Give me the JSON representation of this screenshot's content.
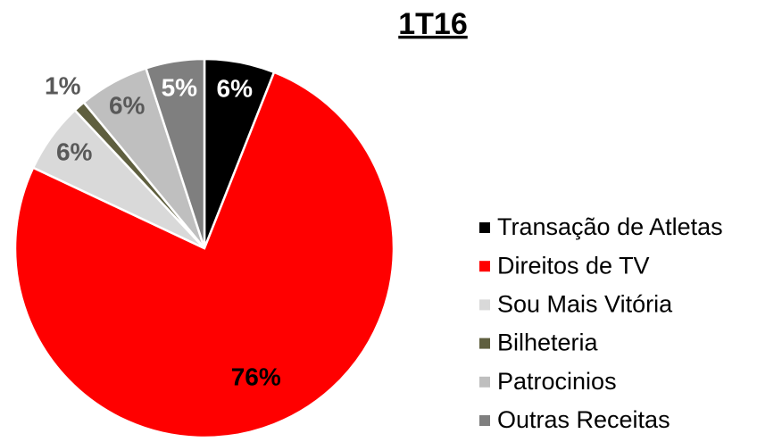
{
  "chart_data": {
    "type": "pie",
    "title": "1T16",
    "categories": [
      "Transação de Atletas",
      "Direitos de TV",
      "Sou Mais Vitória",
      "Bilheteria",
      "Patrocinios",
      "Outras Receitas"
    ],
    "values": [
      6,
      76,
      6,
      1,
      6,
      5
    ],
    "value_labels": [
      "6%",
      "76%",
      "6%",
      "1%",
      "6%",
      "5%"
    ],
    "colors": [
      "#000000",
      "#ff0000",
      "#d9d9d9",
      "#5f5f3f",
      "#bfbfbf",
      "#7f7f7f"
    ],
    "legend": "right"
  }
}
